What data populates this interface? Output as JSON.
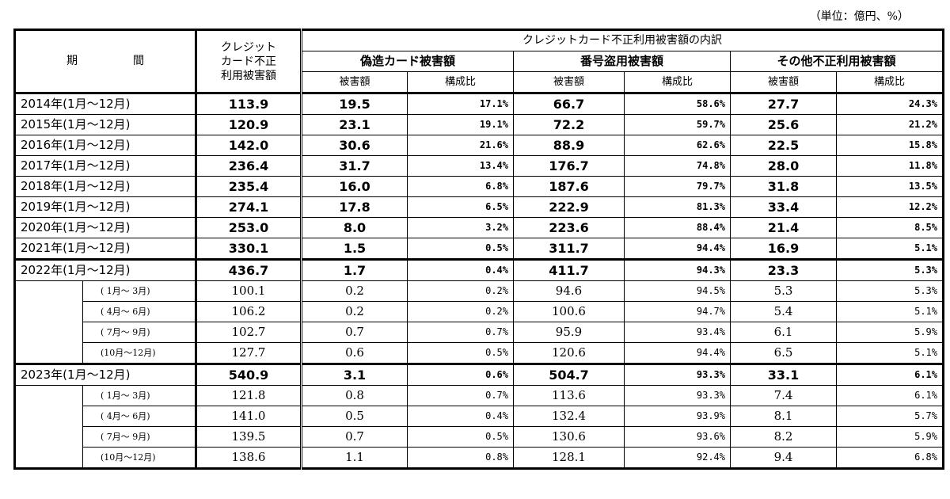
{
  "unit_label": "（単位：億円、%）",
  "header": {
    "period": "期　間",
    "total": [
      "クレジット",
      "カード不正",
      "利用被害額"
    ],
    "breakdown": "クレジットカード不正利用被害額の内訳",
    "categories": [
      "偽造カード被害額",
      "番号盗用被害額",
      "その他不正利用被害額"
    ],
    "sub_amount": "被害額",
    "sub_ratio": "構成比"
  },
  "rows": [
    {
      "type": "year",
      "label": "2014年(1月～12月)",
      "total": "113.9",
      "c1": "19.5",
      "r1": "17.1%",
      "c2": "66.7",
      "r2": "58.6%",
      "c3": "27.7",
      "r3": "24.3%"
    },
    {
      "type": "year",
      "label": "2015年(1月～12月)",
      "total": "120.9",
      "c1": "23.1",
      "r1": "19.1%",
      "c2": "72.2",
      "r2": "59.7%",
      "c3": "25.6",
      "r3": "21.2%"
    },
    {
      "type": "year",
      "label": "2016年(1月～12月)",
      "total": "142.0",
      "c1": "30.6",
      "r1": "21.6%",
      "c2": "88.9",
      "r2": "62.6%",
      "c3": "22.5",
      "r3": "15.8%"
    },
    {
      "type": "year",
      "label": "2017年(1月～12月)",
      "total": "236.4",
      "c1": "31.7",
      "r1": "13.4%",
      "c2": "176.7",
      "r2": "74.8%",
      "c3": "28.0",
      "r3": "11.8%"
    },
    {
      "type": "year",
      "label": "2018年(1月～12月)",
      "total": "235.4",
      "c1": "16.0",
      "r1": "6.8%",
      "c2": "187.6",
      "r2": "79.7%",
      "c3": "31.8",
      "r3": "13.5%"
    },
    {
      "type": "year",
      "label": "2019年(1月～12月)",
      "total": "274.1",
      "c1": "17.8",
      "r1": "6.5%",
      "c2": "222.9",
      "r2": "81.3%",
      "c3": "33.4",
      "r3": "12.2%"
    },
    {
      "type": "year",
      "label": "2020年(1月～12月)",
      "total": "253.0",
      "c1": "8.0",
      "r1": "3.2%",
      "c2": "223.6",
      "r2": "88.4%",
      "c3": "21.4",
      "r3": "8.5%"
    },
    {
      "type": "year",
      "label": "2021年(1月～12月)",
      "total": "330.1",
      "c1": "1.5",
      "r1": "0.5%",
      "c2": "311.7",
      "r2": "94.4%",
      "c3": "16.9",
      "r3": "5.1%"
    },
    {
      "type": "year",
      "label": "2022年(1月～12月)",
      "total": "436.7",
      "c1": "1.7",
      "r1": "0.4%",
      "c2": "411.7",
      "r2": "94.3%",
      "c3": "23.3",
      "r3": "5.3%"
    },
    {
      "type": "q",
      "label": "( 1月～ 3月)",
      "total": "100.1",
      "c1": "0.2",
      "r1": "0.2%",
      "c2": "94.6",
      "r2": "94.5%",
      "c3": "5.3",
      "r3": "5.3%"
    },
    {
      "type": "q",
      "label": "( 4月～ 6月)",
      "total": "106.2",
      "c1": "0.2",
      "r1": "0.2%",
      "c2": "100.6",
      "r2": "94.7%",
      "c3": "5.4",
      "r3": "5.1%"
    },
    {
      "type": "q",
      "label": "( 7月～ 9月)",
      "total": "102.7",
      "c1": "0.7",
      "r1": "0.7%",
      "c2": "95.9",
      "r2": "93.4%",
      "c3": "6.1",
      "r3": "5.9%"
    },
    {
      "type": "q",
      "label": "(10月～12月)",
      "total": "127.7",
      "c1": "0.6",
      "r1": "0.5%",
      "c2": "120.6",
      "r2": "94.4%",
      "c3": "6.5",
      "r3": "5.1%"
    },
    {
      "type": "year",
      "label": "2023年(1月～12月)",
      "total": "540.9",
      "c1": "3.1",
      "r1": "0.6%",
      "c2": "504.7",
      "r2": "93.3%",
      "c3": "33.1",
      "r3": "6.1%"
    },
    {
      "type": "q",
      "label": "( 1月～ 3月)",
      "total": "121.8",
      "c1": "0.8",
      "r1": "0.7%",
      "c2": "113.6",
      "r2": "93.3%",
      "c3": "7.4",
      "r3": "6.1%"
    },
    {
      "type": "q",
      "label": "( 4月～ 6月)",
      "total": "141.0",
      "c1": "0.5",
      "r1": "0.4%",
      "c2": "132.4",
      "r2": "93.9%",
      "c3": "8.1",
      "r3": "5.7%"
    },
    {
      "type": "q",
      "label": "( 7月～ 9月)",
      "total": "139.5",
      "c1": "0.7",
      "r1": "0.5%",
      "c2": "130.6",
      "r2": "93.6%",
      "c3": "8.2",
      "r3": "5.9%"
    },
    {
      "type": "q",
      "label": "(10月～12月)",
      "total": "138.6",
      "c1": "1.1",
      "r1": "0.8%",
      "c2": "128.1",
      "r2": "92.4%",
      "c3": "9.4",
      "r3": "6.8%"
    }
  ]
}
